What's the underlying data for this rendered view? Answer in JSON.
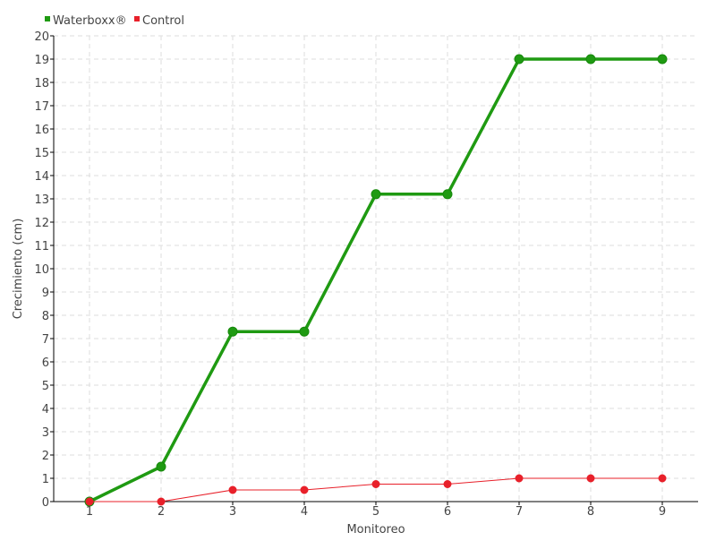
{
  "chart_data": {
    "type": "line",
    "title": "",
    "xlabel": "Monitoreo",
    "ylabel": "Crecimiento (cm)",
    "categories": [
      "1",
      "2",
      "3",
      "4",
      "5",
      "6",
      "7",
      "8",
      "9"
    ],
    "ylim": [
      0,
      20
    ],
    "yticks": [
      "0",
      "1",
      "2",
      "3",
      "4",
      "5",
      "6",
      "7",
      "8",
      "9",
      "10",
      "11",
      "12",
      "13",
      "14",
      "15",
      "16",
      "17",
      "18",
      "19",
      "20"
    ],
    "grid": true,
    "legend_position": "top-left",
    "series": [
      {
        "name": "Waterboxx®",
        "color": "#1f9a12",
        "values": [
          0,
          1.5,
          7.3,
          7.3,
          13.2,
          13.2,
          19,
          19,
          19
        ]
      },
      {
        "name": "Control",
        "color": "#e8202a",
        "values": [
          0,
          0,
          0.5,
          0.5,
          0.75,
          0.75,
          1,
          1,
          1
        ]
      }
    ]
  }
}
